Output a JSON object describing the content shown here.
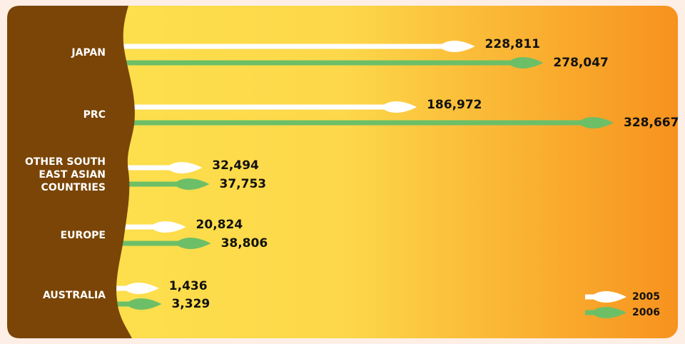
{
  "chart_data": {
    "type": "leaf-bar",
    "categories": [
      "JAPAN",
      "PRC",
      "OTHER SOUTH EAST ASIAN COUNTRIES",
      "EUROPE",
      "AUSTRALIA"
    ],
    "series": [
      {
        "name": "2005",
        "color": "#ffffff",
        "values": [
          228811,
          186972,
          32494,
          20824,
          1436
        ],
        "value_labels": [
          "228,811",
          "186,972",
          "32,494",
          "20,824",
          "1,436"
        ]
      },
      {
        "name": "2006",
        "color": "#6dbf67",
        "values": [
          278047,
          328667,
          37753,
          38806,
          3329
        ],
        "value_labels": [
          "278,047",
          "328,667",
          "37,753",
          "38,806",
          "3,329"
        ]
      }
    ],
    "legend": "bottom-right"
  }
}
